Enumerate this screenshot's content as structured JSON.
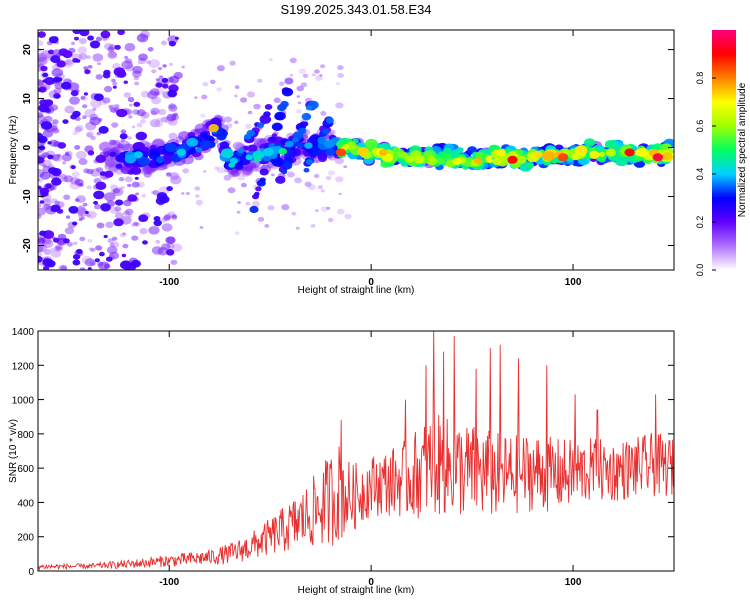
{
  "title": "S199.2025.343.01.58.E34",
  "chart_data": [
    {
      "type": "heatmap",
      "title": "S199.2025.343.01.58.E34",
      "xlabel": "Height of straight line (km)",
      "ylabel": "Frequency (Hz)",
      "xlim": [
        -165,
        150
      ],
      "ylim": [
        -25,
        24
      ],
      "x_ticks": [
        -100,
        0,
        100
      ],
      "x_tick_labels": [
        "-100",
        "0",
        "100"
      ],
      "y_ticks": [
        -20,
        -10,
        0,
        10,
        20
      ],
      "y_tick_labels": [
        "-20",
        "-10",
        "0",
        "10",
        "20"
      ],
      "ridge": {
        "x": [
          -130,
          -120,
          -110,
          -100,
          -90,
          -80,
          -75,
          -70,
          -60,
          -50,
          -40,
          -30,
          -20,
          -10,
          0,
          10,
          20,
          30,
          40,
          50,
          60,
          70,
          80,
          90,
          100,
          110,
          120,
          130,
          140,
          148
        ],
        "frequency": [
          -2,
          -2,
          -2,
          -1,
          0,
          2,
          4,
          -3,
          -2,
          -1,
          0,
          0.5,
          0,
          -0.5,
          -1,
          -1.5,
          -2,
          -2,
          -2,
          -2,
          -2,
          -2,
          -2,
          -1.5,
          -1.5,
          -1,
          -1,
          -1,
          -1.5,
          -1
        ]
      },
      "colorbar": {
        "label": "Normalized spectral amplitude",
        "range": [
          0.0,
          1.0
        ],
        "ticks": [
          0.0,
          0.2,
          0.4,
          0.6,
          0.8
        ],
        "tick_labels": [
          "0.0",
          "0.2",
          "0.4",
          "0.6",
          "0.8"
        ],
        "colors": [
          "#ffffff",
          "#b070ff",
          "#6000ff",
          "#0000ff",
          "#00d0ff",
          "#00ff60",
          "#a0ff00",
          "#ffff00",
          "#ff8000",
          "#ff0000",
          "#ff0080"
        ]
      }
    },
    {
      "type": "line",
      "xlabel": "Height of straight line (km)",
      "ylabel": "SNR (10 * v/v)",
      "xlim": [
        -165,
        150
      ],
      "ylim": [
        0,
        1400
      ],
      "x_ticks": [
        -100,
        0,
        100
      ],
      "x_tick_labels": [
        "-100",
        "0",
        "100"
      ],
      "y_ticks": [
        0,
        200,
        400,
        600,
        800,
        1000,
        1200,
        1400
      ],
      "y_tick_labels": [
        "0",
        "200",
        "400",
        "600",
        "800",
        "1000",
        "1200",
        "1400"
      ],
      "series": [
        {
          "name": "SNR",
          "color": "#e83030",
          "envelope_x": [
            -165,
            -140,
            -120,
            -100,
            -80,
            -70,
            -60,
            -50,
            -40,
            -30,
            -20,
            -15,
            -10,
            0,
            10,
            20,
            30,
            40,
            50,
            60,
            70,
            80,
            90,
            100,
            110,
            120,
            130,
            140,
            150
          ],
          "envelope_mean": [
            25,
            28,
            40,
            60,
            80,
            100,
            140,
            200,
            260,
            330,
            420,
            470,
            420,
            500,
            520,
            550,
            620,
            600,
            580,
            560,
            560,
            580,
            560,
            570,
            590,
            580,
            600,
            620,
            600
          ],
          "envelope_spread": [
            15,
            15,
            25,
            35,
            45,
            60,
            80,
            110,
            150,
            200,
            280,
            300,
            200,
            180,
            200,
            250,
            300,
            290,
            280,
            260,
            240,
            230,
            220,
            200,
            190,
            180,
            180,
            190,
            170
          ],
          "peaks": [
            {
              "x": -15,
              "y": 880
            },
            {
              "x": 17,
              "y": 1000
            },
            {
              "x": 27,
              "y": 1200
            },
            {
              "x": 31,
              "y": 1410
            },
            {
              "x": 36,
              "y": 1280
            },
            {
              "x": 41,
              "y": 1370
            },
            {
              "x": 52,
              "y": 1180
            },
            {
              "x": 59,
              "y": 1300
            },
            {
              "x": 64,
              "y": 1320
            },
            {
              "x": 73,
              "y": 1240
            },
            {
              "x": 87,
              "y": 1200
            },
            {
              "x": 101,
              "y": 1030
            },
            {
              "x": 112,
              "y": 940
            },
            {
              "x": 141,
              "y": 1030
            },
            {
              "x": 148,
              "y": 760
            }
          ]
        }
      ]
    }
  ]
}
